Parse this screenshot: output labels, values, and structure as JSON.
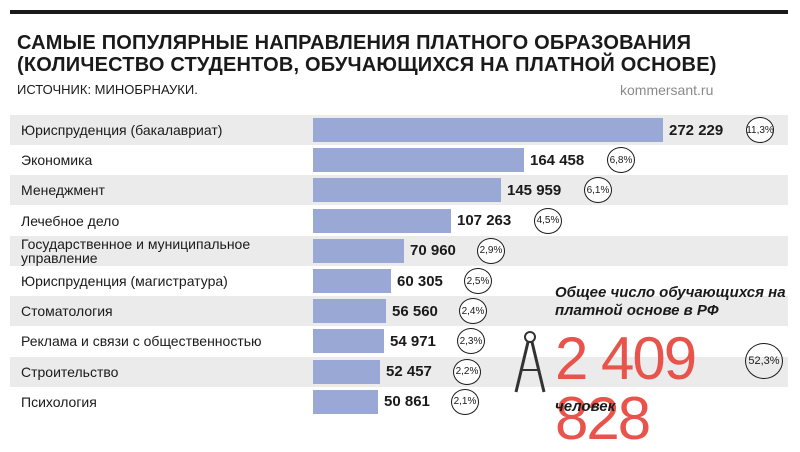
{
  "header": {
    "title": "САМЫЕ ПОПУЛЯРНЫЕ НАПРАВЛЕНИЯ ПЛАТНОГО ОБРАЗОВАНИЯ (КОЛИЧЕСТВО СТУДЕНТОВ, ОБУЧАЮЩИХСЯ НА ПЛАТНОЙ ОСНОВЕ)",
    "source": "ИСТОЧНИК: МИНОБРНАУКИ.",
    "site": "kommersant.ru"
  },
  "colors": {
    "bar": "#9aa8d6",
    "accent": "#e8534b",
    "row_alt": "#ebebeb"
  },
  "chart_data": {
    "type": "bar",
    "orientation": "horizontal",
    "categories": [
      "Юриспруденция (бакалавриат)",
      "Экономика",
      "Менеджмент",
      "Лечебное дело",
      "Государственное и муниципальное управление",
      "Юриспруденция (магистратура)",
      "Стоматология",
      "Реклама и связи с общественностью",
      "Строительство",
      "Психология"
    ],
    "values": [
      272229,
      164458,
      145959,
      107263,
      70960,
      60305,
      56560,
      54971,
      52457,
      50861
    ],
    "value_labels": [
      "272 229",
      "164 458",
      "145 959",
      "107 263",
      "70 960",
      "60 305",
      "56 560",
      "54 971",
      "52 457",
      "50 861"
    ],
    "shares": [
      "11,3%",
      "6,8%",
      "6,1%",
      "4,5%",
      "2,9%",
      "2,5%",
      "2,4%",
      "2,3%",
      "2,2%",
      "2,1%"
    ]
  },
  "total": {
    "caption": "Общее число обучающихся на платной основе в РФ",
    "value": "2 409 828",
    "share": "52,3%",
    "unit": "человек",
    "icon": "compass-icon"
  }
}
